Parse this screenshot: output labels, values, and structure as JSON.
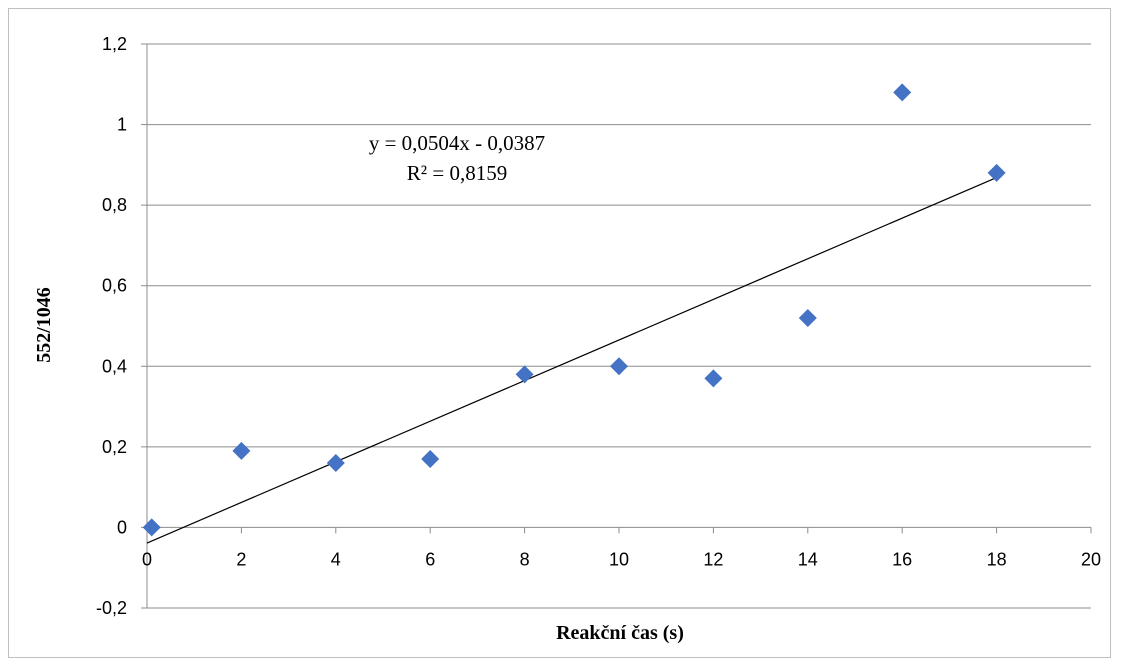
{
  "chart_data": {
    "type": "scatter",
    "xlabel": "Reakční čas (s)",
    "ylabel": "552/1046",
    "xlim": [
      0,
      20
    ],
    "ylim": [
      -0.2,
      1.2
    ],
    "x_ticks": [
      0,
      2,
      4,
      6,
      8,
      10,
      12,
      14,
      16,
      18,
      20
    ],
    "y_ticks": [
      -0.2,
      0,
      0.2,
      0.4,
      0.6,
      0.8,
      1,
      1.2
    ],
    "x_tick_labels": [
      "0",
      "2",
      "4",
      "6",
      "8",
      "10",
      "12",
      "14",
      "16",
      "18",
      "20"
    ],
    "y_tick_labels": [
      "-0,2",
      "0",
      "0,2",
      "0,4",
      "0,6",
      "0,8",
      "1",
      "1,2"
    ],
    "grid": "horizontal",
    "legend": "none",
    "marker_color": "#4472C4",
    "series": [
      {
        "x": [
          0.1,
          2,
          4,
          6,
          8,
          10,
          12,
          14,
          16,
          18
        ],
        "y": [
          0.0,
          0.19,
          0.16,
          0.17,
          0.38,
          0.4,
          0.37,
          0.52,
          1.08,
          0.88
        ]
      }
    ],
    "trendline": {
      "slope": 0.0504,
      "intercept": -0.0387,
      "x_range": [
        0,
        18
      ],
      "equation": "y = 0,0504x - 0,0387",
      "r_squared": "R² = 0,8159"
    }
  }
}
